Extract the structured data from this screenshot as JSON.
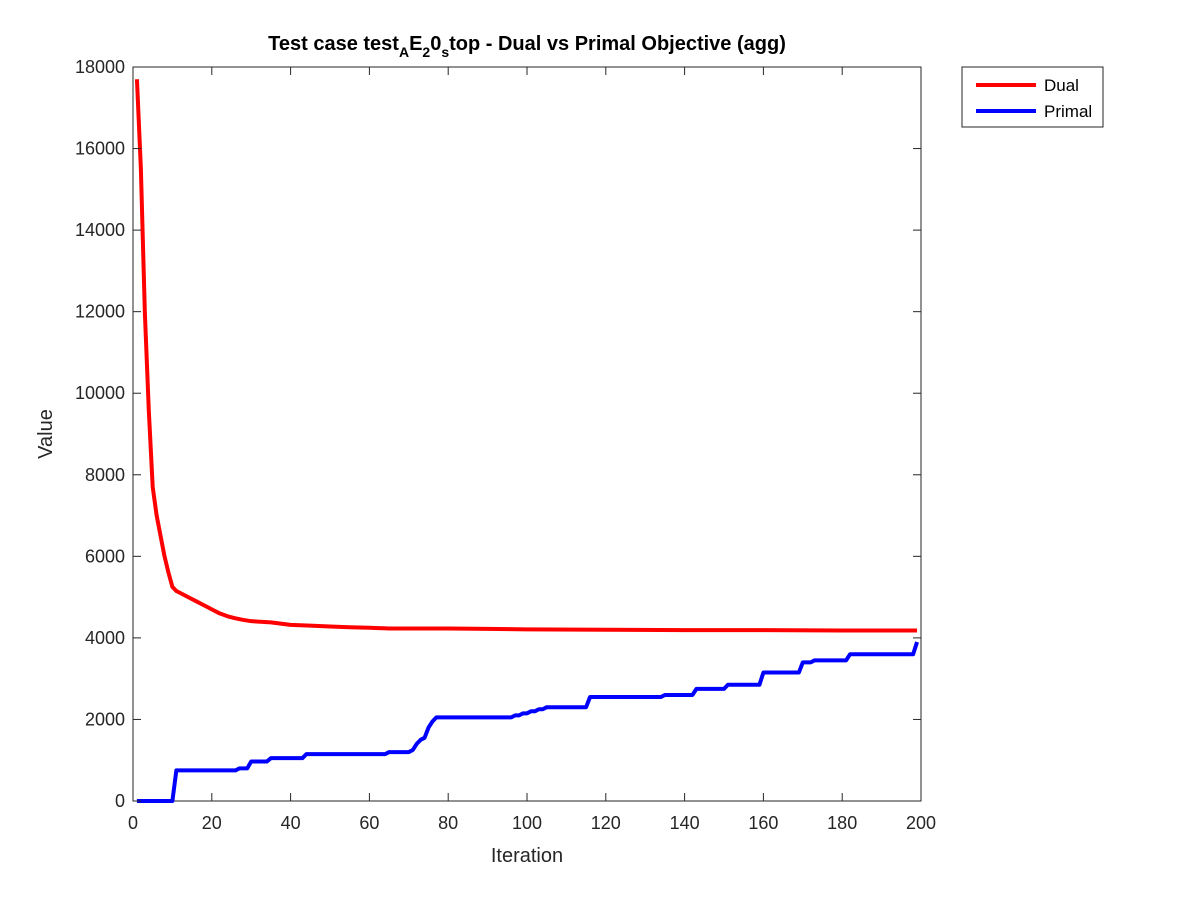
{
  "chart_data": {
    "type": "line",
    "title": {
      "parts": [
        {
          "text": "Test case test",
          "baseline": "normal"
        },
        {
          "text": "A",
          "baseline": "sub"
        },
        {
          "text": "E",
          "baseline": "normal"
        },
        {
          "text": "2",
          "baseline": "sub"
        },
        {
          "text": "0",
          "baseline": "normal"
        },
        {
          "text": "s",
          "baseline": "sub"
        },
        {
          "text": "top - Dual vs Primal Objective (agg)",
          "baseline": "normal"
        }
      ]
    },
    "xlabel": "Iteration",
    "ylabel": "Value",
    "xlim": [
      0,
      200
    ],
    "ylim": [
      0,
      18000
    ],
    "xticks": [
      0,
      20,
      40,
      60,
      80,
      100,
      120,
      140,
      160,
      180,
      200
    ],
    "yticks": [
      0,
      2000,
      4000,
      6000,
      8000,
      10000,
      12000,
      14000,
      16000,
      18000
    ],
    "grid": false,
    "legend_position": "outside-top-right",
    "series": [
      {
        "name": "Dual",
        "color": "#ff0000",
        "step": false,
        "points": [
          [
            1,
            17700
          ],
          [
            2,
            15500
          ],
          [
            3,
            12000
          ],
          [
            4,
            9600
          ],
          [
            5,
            7700
          ],
          [
            6,
            7000
          ],
          [
            7,
            6500
          ],
          [
            8,
            6000
          ],
          [
            9,
            5600
          ],
          [
            10,
            5250
          ],
          [
            11,
            5150
          ],
          [
            12,
            5100
          ],
          [
            14,
            5000
          ],
          [
            16,
            4900
          ],
          [
            18,
            4800
          ],
          [
            20,
            4700
          ],
          [
            22,
            4600
          ],
          [
            24,
            4530
          ],
          [
            26,
            4480
          ],
          [
            28,
            4440
          ],
          [
            30,
            4410
          ],
          [
            35,
            4380
          ],
          [
            40,
            4320
          ],
          [
            45,
            4300
          ],
          [
            50,
            4280
          ],
          [
            55,
            4260
          ],
          [
            60,
            4250
          ],
          [
            65,
            4230
          ],
          [
            70,
            4230
          ],
          [
            80,
            4230
          ],
          [
            90,
            4220
          ],
          [
            100,
            4210
          ],
          [
            120,
            4200
          ],
          [
            140,
            4190
          ],
          [
            160,
            4190
          ],
          [
            180,
            4180
          ],
          [
            199,
            4180
          ]
        ]
      },
      {
        "name": "Primal",
        "color": "#0000ff",
        "step": true,
        "points": [
          [
            1,
            0
          ],
          [
            10,
            0
          ],
          [
            11,
            750
          ],
          [
            26,
            750
          ],
          [
            27,
            800
          ],
          [
            29,
            800
          ],
          [
            30,
            970
          ],
          [
            34,
            970
          ],
          [
            35,
            1050
          ],
          [
            43,
            1050
          ],
          [
            44,
            1150
          ],
          [
            64,
            1150
          ],
          [
            65,
            1200
          ],
          [
            70,
            1200
          ],
          [
            71,
            1250
          ],
          [
            72,
            1400
          ],
          [
            73,
            1500
          ],
          [
            74,
            1550
          ],
          [
            75,
            1800
          ],
          [
            76,
            1950
          ],
          [
            77,
            2050
          ],
          [
            95,
            2050
          ],
          [
            97,
            2100
          ],
          [
            99,
            2150
          ],
          [
            101,
            2200
          ],
          [
            103,
            2250
          ],
          [
            105,
            2300
          ],
          [
            115,
            2300
          ],
          [
            116,
            2550
          ],
          [
            134,
            2550
          ],
          [
            135,
            2600
          ],
          [
            142,
            2600
          ],
          [
            143,
            2750
          ],
          [
            150,
            2750
          ],
          [
            151,
            2850
          ],
          [
            158,
            2850
          ],
          [
            160,
            3150
          ],
          [
            168,
            3150
          ],
          [
            170,
            3400
          ],
          [
            173,
            3450
          ],
          [
            180,
            3450
          ],
          [
            182,
            3600
          ],
          [
            197,
            3600
          ],
          [
            199,
            3900
          ]
        ]
      }
    ]
  }
}
